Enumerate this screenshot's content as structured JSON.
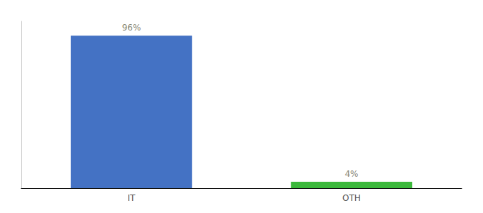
{
  "chart_data": {
    "type": "bar",
    "categories": [
      "IT",
      "OTH"
    ],
    "values": [
      96,
      4
    ],
    "value_labels": [
      "96%",
      "4%"
    ],
    "colors": [
      "#4472C4",
      "#3CB93C"
    ],
    "ylim": [
      0,
      105
    ],
    "grid": false,
    "data_labels": true,
    "tick_labels": "x"
  }
}
